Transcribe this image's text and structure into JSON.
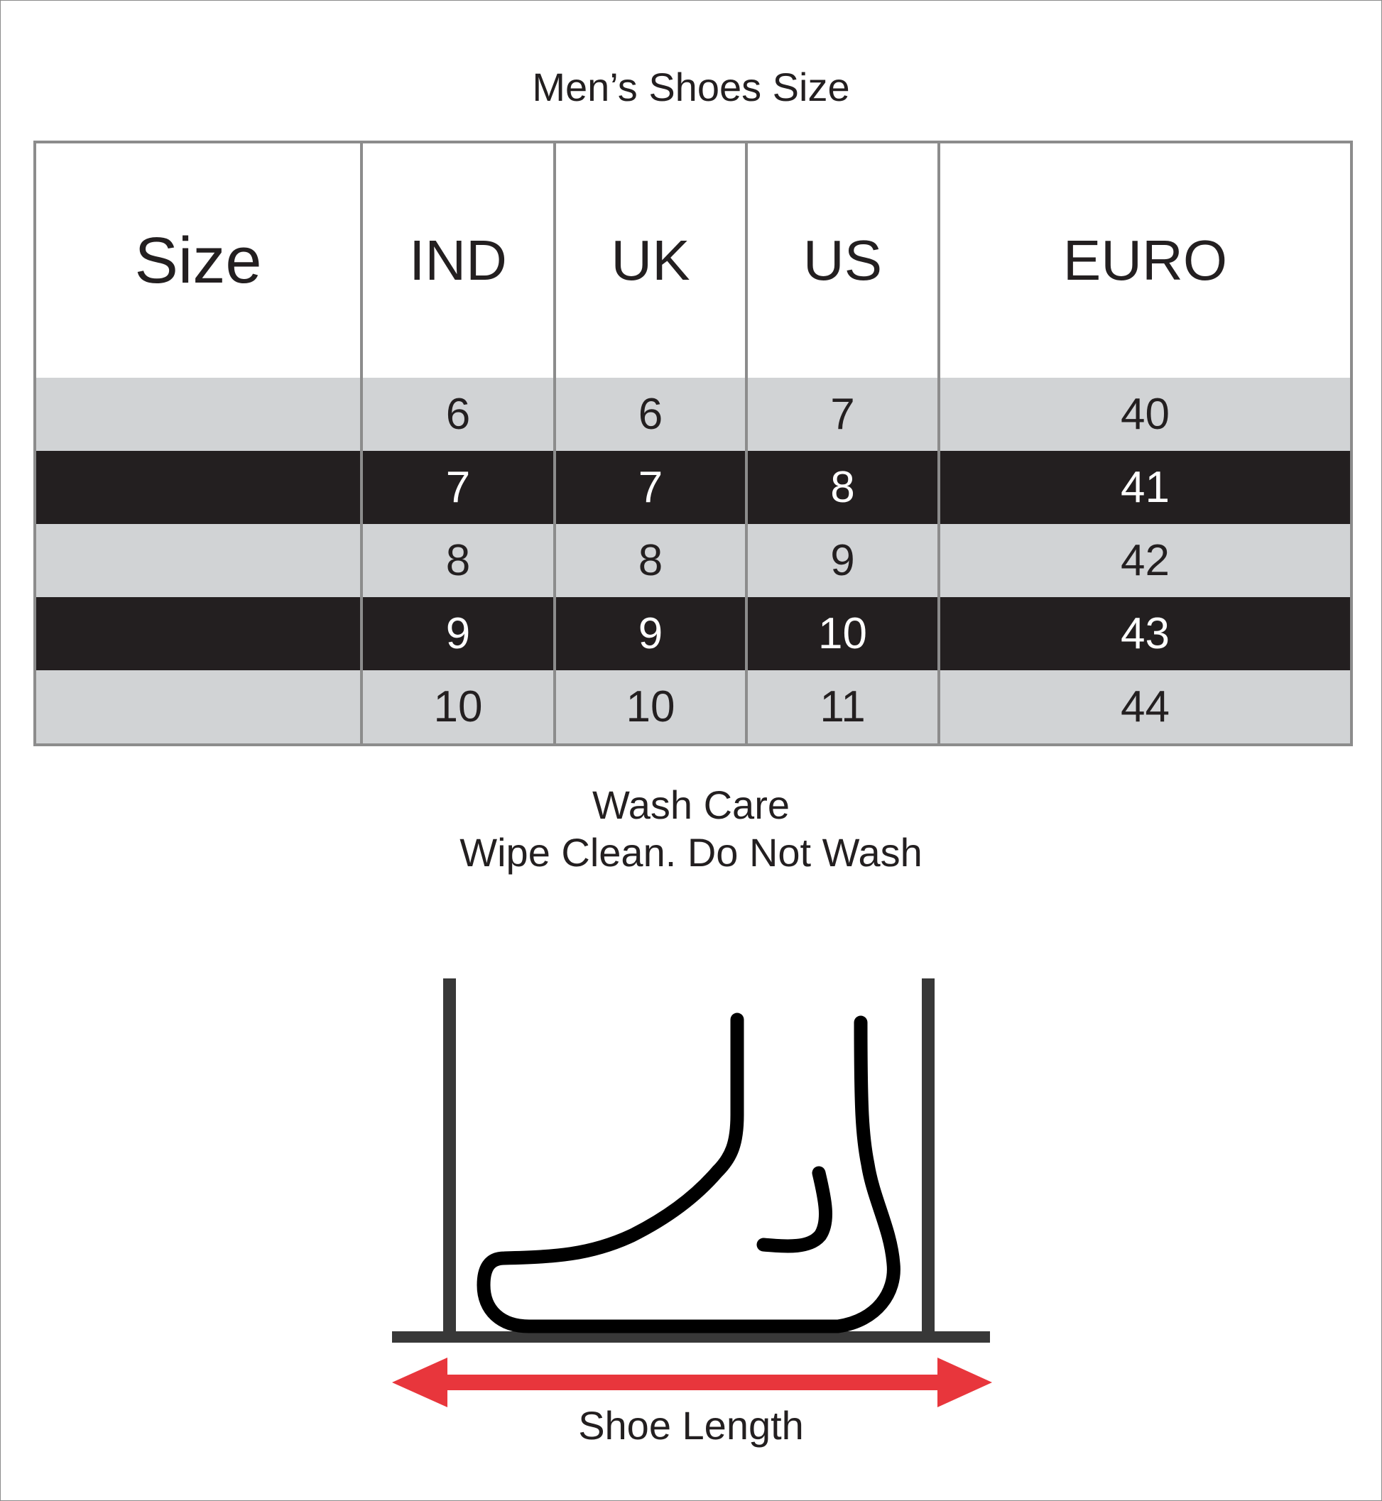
{
  "title": "Men’s Shoes Size",
  "table": {
    "headers": [
      "Size",
      "IND",
      "UK",
      "US",
      "EURO"
    ],
    "rows": [
      [
        "",
        "6",
        "6",
        "7",
        "40"
      ],
      [
        "",
        "7",
        "7",
        "8",
        "41"
      ],
      [
        "",
        "8",
        "8",
        "9",
        "42"
      ],
      [
        "",
        "9",
        "9",
        "10",
        "43"
      ],
      [
        "",
        "10",
        "10",
        "11",
        "44"
      ]
    ]
  },
  "wash_care": {
    "heading": "Wash Care",
    "instruction": "Wipe Clean. Do Not Wash"
  },
  "diagram": {
    "icon": "foot-measurement-icon",
    "label": "Shoe Length",
    "arrow_color": "#e8363c",
    "line_color": "#383838"
  },
  "colors": {
    "light_row": "#d1d3d5",
    "dark_row": "#231f20",
    "border": "#8c8c8c"
  }
}
